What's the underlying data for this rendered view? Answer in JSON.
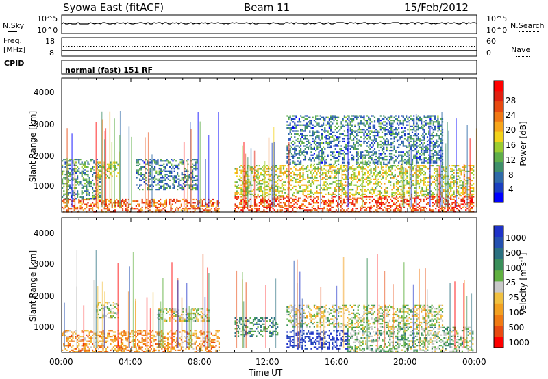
{
  "header": {
    "site": "Syowa East (fitACF)",
    "beam": "Beam 11",
    "date": "15/Feb/2012"
  },
  "noise_panel": {
    "left_label": "N.Sky",
    "left_ticks": [
      "10^5",
      "10^0"
    ],
    "right_label": "N.Search",
    "right_ticks": [
      "10^5",
      "10^0"
    ]
  },
  "freq_panel": {
    "left_label_1": "Freq.",
    "left_label_2": "[MHz]",
    "left_ticks": [
      "18",
      "8"
    ],
    "right_label": "Nave",
    "right_ticks": [
      "60",
      "0"
    ]
  },
  "cpid_panel": {
    "label": "CPID",
    "program": "normal (fast) 151 RF"
  },
  "axes": {
    "ylabel": "Slant Range [km]",
    "yticks": [
      "4000",
      "3000",
      "2000",
      "1000"
    ],
    "xticks": [
      "00:00",
      "04:00",
      "08:00",
      "12:00",
      "16:00",
      "20:00",
      "00:00"
    ],
    "xlabel": "Time UT"
  },
  "colorbars": {
    "power": {
      "label": "Power [dB]",
      "ticks": [
        "28",
        "24",
        "20",
        "16",
        "12",
        "8",
        "4"
      ],
      "colors": [
        "#0000ff",
        "#1a3fc0",
        "#2f6aa8",
        "#3f8f6a",
        "#5fae4a",
        "#9ccc30",
        "#f2d21a",
        "#f6a51a",
        "#f07814",
        "#e84a10",
        "#e02010",
        "#ff0000"
      ]
    },
    "velocity": {
      "label": "Velocity [m s",
      "label_sup": "-1",
      "label_close": "]",
      "ticks": [
        "1000",
        "500",
        "100",
        "25",
        "-25",
        "-100",
        "-500",
        "-1000"
      ],
      "colors": [
        "#1e32c8",
        "#2450b0",
        "#2a7080",
        "#3a8f5a",
        "#60b040",
        "#c8c8c8",
        "#f0c040",
        "#f2a020",
        "#f07a12",
        "#e84a10",
        "#ff0000"
      ]
    }
  },
  "chart_data": [
    {
      "type": "heatmap",
      "title": "",
      "xlabel": "Time UT",
      "ylabel": "Slant Range [km]",
      "xlim": [
        0,
        24
      ],
      "ylim": [
        180,
        4500
      ],
      "colorbar": "Power [dB]",
      "colorbar_range": [
        0,
        32
      ],
      "echo_regions": [
        {
          "t0": 0.0,
          "t1": 9.1,
          "r0": 180,
          "r1": 600,
          "value": 24
        },
        {
          "t0": 0.0,
          "t1": 2.2,
          "r0": 600,
          "r1": 1900,
          "value": 10
        },
        {
          "t0": 2.0,
          "t1": 3.3,
          "r0": 1300,
          "r1": 1800,
          "value": 14
        },
        {
          "t0": 4.3,
          "t1": 7.8,
          "r0": 900,
          "r1": 1900,
          "value": 8
        },
        {
          "t0": 10.0,
          "t1": 23.8,
          "r0": 180,
          "r1": 700,
          "value": 26
        },
        {
          "t0": 10.0,
          "t1": 23.8,
          "r0": 700,
          "r1": 1700,
          "value": 16
        },
        {
          "t0": 13.0,
          "t1": 22.0,
          "r0": 1700,
          "r1": 3300,
          "value": 8
        }
      ]
    },
    {
      "type": "heatmap",
      "title": "",
      "xlabel": "Time UT",
      "ylabel": "Slant Range [km]",
      "xlim": [
        0,
        24
      ],
      "ylim": [
        180,
        4500
      ],
      "colorbar": "Velocity [m s-1]",
      "colorbar_range": [
        -1000,
        1000
      ],
      "echo_regions": [
        {
          "t0": 0.0,
          "t1": 9.1,
          "r0": 180,
          "r1": 900,
          "value": -400
        },
        {
          "t0": 2.0,
          "t1": 3.3,
          "r0": 1300,
          "r1": 1800,
          "value": 0
        },
        {
          "t0": 5.5,
          "t1": 8.5,
          "r0": 1200,
          "r1": 1600,
          "value": 0
        },
        {
          "t0": 10.0,
          "t1": 12.5,
          "r0": 700,
          "r1": 1300,
          "value": 400
        },
        {
          "t0": 13.0,
          "t1": 16.5,
          "r0": 300,
          "r1": 900,
          "value": 1000
        },
        {
          "t0": 16.5,
          "t1": 23.8,
          "r0": 180,
          "r1": 1000,
          "value": 150
        },
        {
          "t0": 13.0,
          "t1": 22.0,
          "r0": 1000,
          "r1": 1700,
          "value": 0
        }
      ]
    }
  ]
}
